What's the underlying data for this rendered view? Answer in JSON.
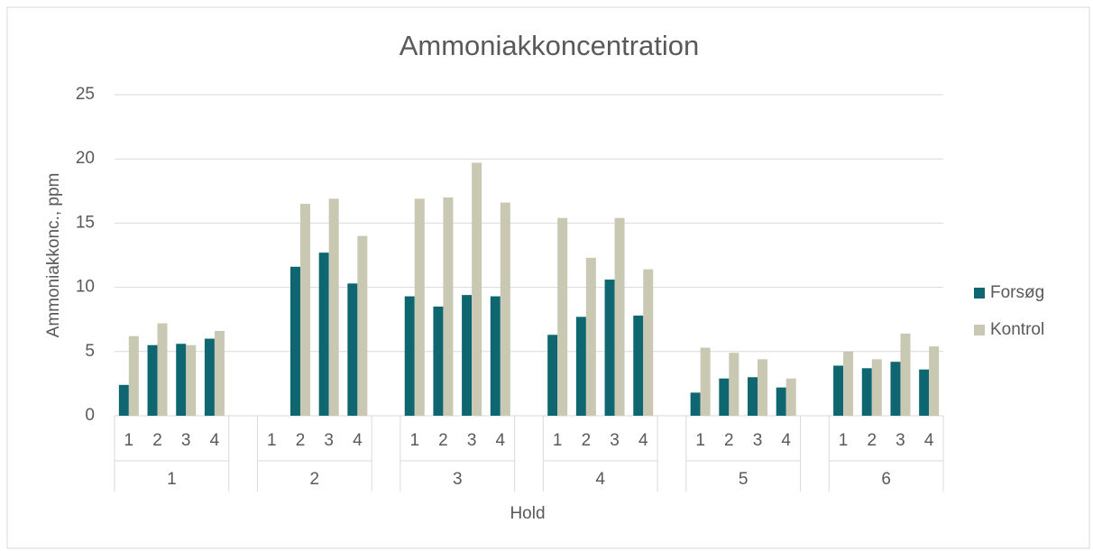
{
  "chart_data": {
    "type": "bar",
    "title": "Ammoniakkoncentration",
    "x_label": "Hold",
    "y_label": "Ammoniakkonc., ppm",
    "groups": [
      "1",
      "2",
      "3",
      "4",
      "5",
      "6"
    ],
    "categories": [
      "1",
      "2",
      "3",
      "4",
      "1",
      "2",
      "3",
      "4",
      "1",
      "2",
      "3",
      "4",
      "1",
      "2",
      "3",
      "4",
      "1",
      "2",
      "3",
      "4",
      "1",
      "2",
      "3",
      "4"
    ],
    "series": [
      {
        "name": "Forsøg",
        "color": "#0e6770",
        "values": [
          2.4,
          5.5,
          5.6,
          6.0,
          null,
          11.6,
          12.7,
          10.3,
          9.3,
          8.5,
          9.4,
          9.3,
          6.3,
          7.7,
          10.6,
          7.8,
          1.8,
          2.9,
          3.0,
          2.2,
          3.9,
          3.7,
          4.2,
          3.6
        ]
      },
      {
        "name": "Kontrol",
        "color": "#c9c8b3",
        "values": [
          6.2,
          7.2,
          5.5,
          6.6,
          null,
          16.5,
          16.9,
          14.0,
          16.9,
          17.0,
          19.7,
          16.6,
          15.4,
          12.3,
          15.4,
          11.4,
          5.3,
          4.9,
          4.4,
          2.9,
          5.0,
          4.4,
          6.4,
          5.4
        ]
      }
    ],
    "ylim": [
      0,
      25
    ],
    "yticks": [
      0,
      5,
      10,
      15,
      20,
      25
    ],
    "grid": true,
    "legend": "right"
  }
}
